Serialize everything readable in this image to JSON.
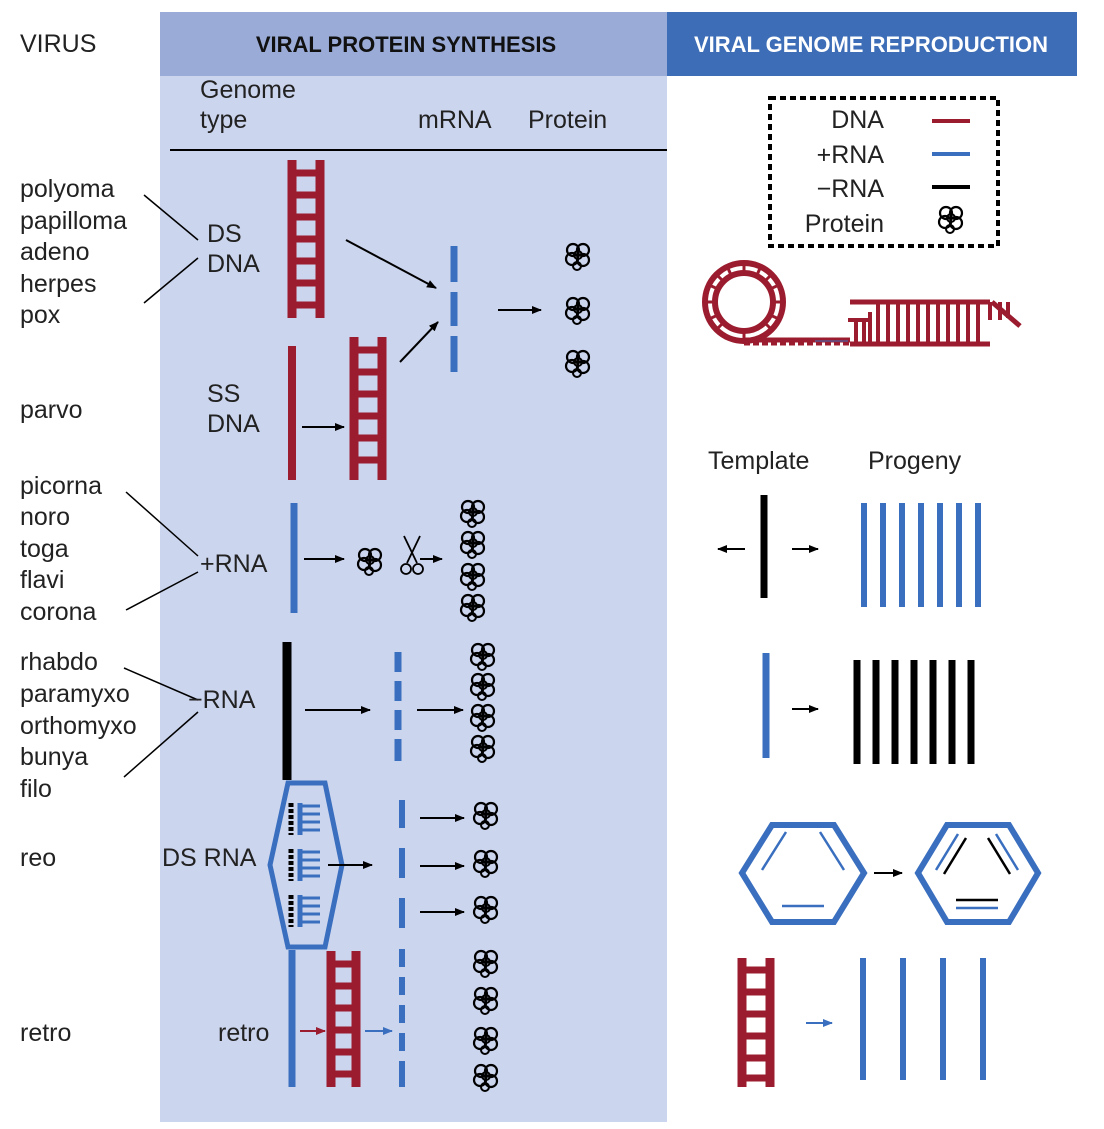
{
  "colors": {
    "dna": "#9b1c2e",
    "plus_rna": "#3a6fbf",
    "minus_rna": "#000000",
    "synthesis_header_bg": "#9aabd8",
    "synthesis_panel_bg": "#ccd5ee",
    "reproduction_header_bg": "#3d6db7"
  },
  "headers": {
    "virus": "VIRUS",
    "synthesis": "VIRAL PROTEIN SYNTHESIS",
    "reproduction": "VIRAL GENOME REPRODUCTION"
  },
  "columns": {
    "genome_type_line1": "Genome",
    "genome_type_line2": "type",
    "mrna": "mRNA",
    "protein": "Protein"
  },
  "legend": {
    "dna": "DNA",
    "plus_rna": "+RNA",
    "minus_rna": "−RNA",
    "protein": "Protein"
  },
  "viruses": {
    "dsdna": [
      "polyoma",
      "papilloma",
      "adeno",
      "herpes",
      "pox"
    ],
    "ssdna": [
      "parvo"
    ],
    "plus_rna": [
      "picorna",
      "noro",
      "toga",
      "flavi",
      "corona"
    ],
    "minus_rna": [
      "rhabdo",
      "paramyxo",
      "orthomyxo",
      "bunya",
      "filo"
    ],
    "dsrna": [
      "reo"
    ],
    "retro": [
      "retro"
    ]
  },
  "genome_types": {
    "ds_dna_line1": "DS",
    "ds_dna_line2": "DNA",
    "ss_dna_line1": "SS",
    "ss_dna_line2": "DNA",
    "plus_rna": "+RNA",
    "minus_rna": "−RNA",
    "ds_rna": "DS RNA",
    "retro": "retro"
  },
  "reproduction": {
    "template": "Template",
    "progeny": "Progeny"
  }
}
